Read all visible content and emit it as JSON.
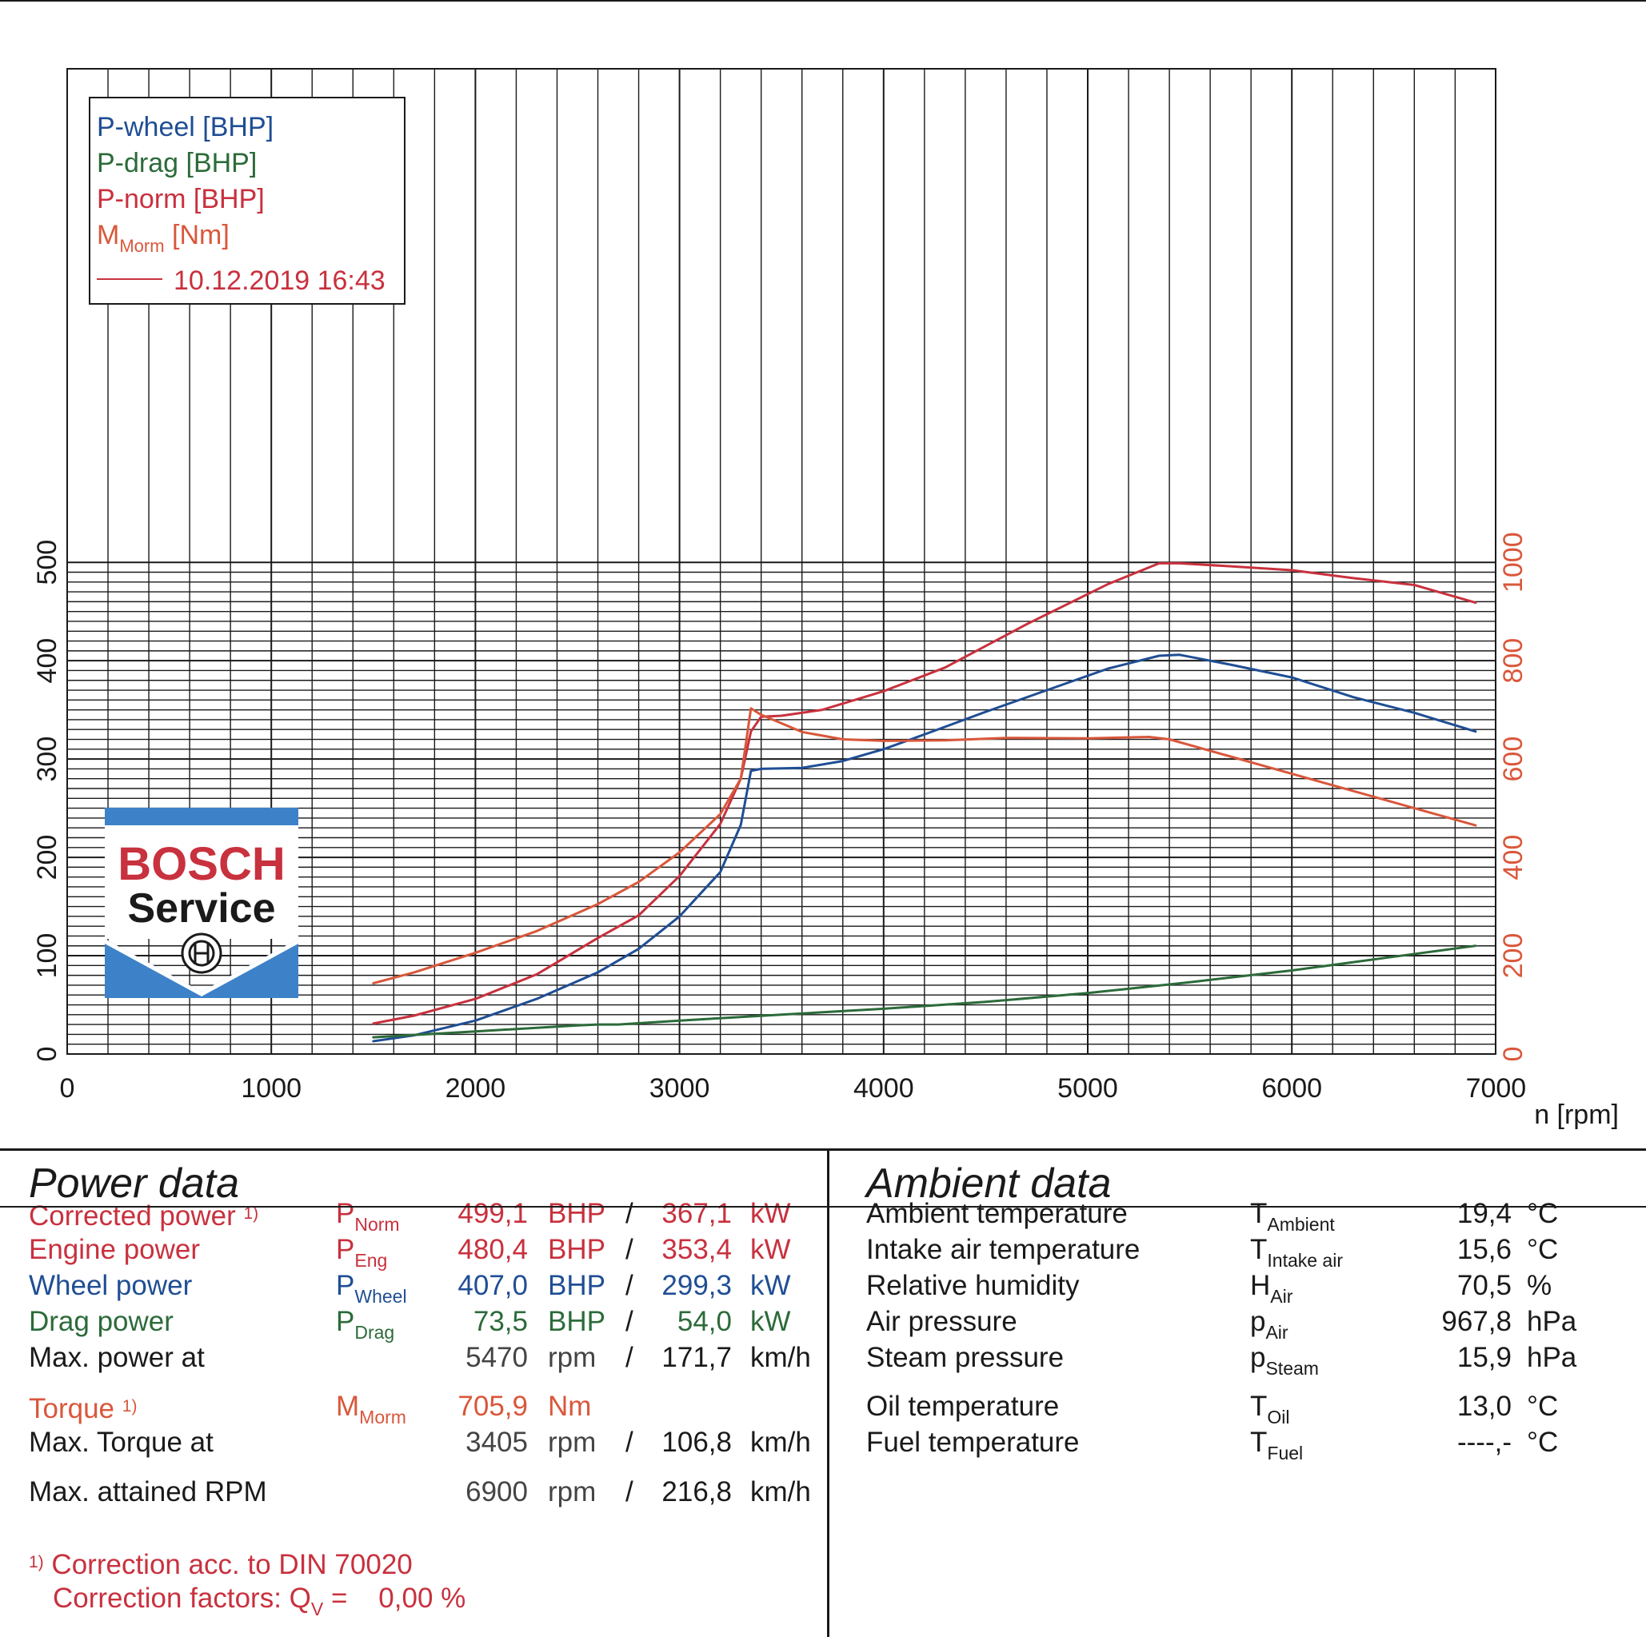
{
  "chart_data": {
    "type": "line",
    "xlabel": "n [rpm]",
    "x_ticks": [
      "0",
      "1000",
      "2000",
      "3000",
      "4000",
      "5000",
      "6000",
      "7000"
    ],
    "xlim": [
      0,
      7000
    ],
    "y_left_ticks": [
      "0",
      "100",
      "200",
      "300",
      "400",
      "500"
    ],
    "ylim_left": [
      0,
      500
    ],
    "y_right_ticks": [
      "0",
      "200",
      "400",
      "600",
      "800",
      "1000"
    ],
    "ylim_right": [
      0,
      1000
    ],
    "grid": true,
    "legend_position": "top-left",
    "legend": [
      {
        "label": "P-wheel [BHP]",
        "color": "#1f4e94"
      },
      {
        "label": "P-drag [BHP]",
        "color": "#2c6b3a"
      },
      {
        "label": "P-norm [BHP]",
        "color": "#c8313e"
      },
      {
        "label": "M",
        "sub": "Morm",
        "suffix": " [Nm]",
        "color": "#d9573b"
      }
    ],
    "run_label": "10.12.2019 16:43",
    "series": [
      {
        "name": "P-wheel [BHP]",
        "axis": "left",
        "color": "#1f4e94",
        "x": [
          1500,
          1700,
          2000,
          2300,
          2600,
          2800,
          3000,
          3200,
          3300,
          3350,
          3400,
          3600,
          3800,
          4000,
          4200,
          4500,
          4800,
          5100,
          5350,
          5450,
          5700,
          6000,
          6300,
          6600,
          6900
        ],
        "y": [
          13,
          19,
          34,
          56,
          83,
          107,
          140,
          185,
          233,
          288,
          290,
          291,
          298,
          310,
          325,
          348,
          370,
          392,
          405,
          406,
          396,
          383,
          363,
          347,
          328
        ]
      },
      {
        "name": "P-drag [BHP]",
        "axis": "left",
        "color": "#2c6b3a",
        "x": [
          1500,
          2000,
          2500,
          2600,
          2700,
          3000,
          3500,
          4000,
          4500,
          5000,
          5500,
          6000,
          6500,
          6900
        ],
        "y": [
          17,
          23,
          29,
          30,
          30,
          34,
          40,
          46,
          53,
          62,
          73,
          85,
          99,
          110
        ]
      },
      {
        "name": "P-norm [BHP]",
        "axis": "left",
        "color": "#c8313e",
        "x": [
          1500,
          1700,
          2000,
          2300,
          2600,
          2800,
          3000,
          3200,
          3300,
          3350,
          3400,
          3500,
          3700,
          4000,
          4300,
          4700,
          5100,
          5350,
          5450,
          5700,
          6000,
          6300,
          6600,
          6900
        ],
        "y": [
          31,
          39,
          56,
          81,
          118,
          141,
          181,
          234,
          280,
          328,
          343,
          344,
          350,
          369,
          393,
          437,
          478,
          499,
          499,
          496,
          492,
          484,
          477,
          459
        ]
      },
      {
        "name": "M Morm [Nm]",
        "axis": "right",
        "color": "#d9573b",
        "x": [
          1500,
          1700,
          2000,
          2300,
          2600,
          2800,
          3000,
          3200,
          3300,
          3350,
          3400,
          3600,
          3800,
          4000,
          4300,
          4600,
          5000,
          5300,
          5400,
          5700,
          6000,
          6300,
          6600,
          6900
        ],
        "y": [
          144,
          166,
          206,
          250,
          305,
          350,
          410,
          488,
          560,
          703,
          690,
          655,
          640,
          637,
          638,
          643,
          642,
          645,
          640,
          605,
          570,
          535,
          500,
          465
        ]
      }
    ]
  },
  "logo": {
    "line1": "BOSCH",
    "line2": "Service"
  },
  "power_data": {
    "title": "Power data",
    "footnote_mark": "1)",
    "rows": [
      {
        "label": "Corrected power",
        "fn": "1)",
        "sym": "P",
        "sub": "Norm",
        "v1": "499,1",
        "u1": "BHP",
        "sep": "/",
        "v2": "367,1",
        "u2": "kW",
        "color": "red"
      },
      {
        "label": "Engine power",
        "fn": "",
        "sym": "P",
        "sub": "Eng",
        "v1": "480,4",
        "u1": "BHP",
        "sep": "/",
        "v2": "353,4",
        "u2": "kW",
        "color": "red"
      },
      {
        "label": "Wheel power",
        "fn": "",
        "sym": "P",
        "sub": "Wheel",
        "v1": "407,0",
        "u1": "BHP",
        "sep": "/",
        "v2": "299,3",
        "u2": "kW",
        "color": "blue"
      },
      {
        "label": "Drag power",
        "fn": "",
        "sym": "P",
        "sub": "Drag",
        "v1": "73,5",
        "u1": "BHP",
        "sep": "/",
        "v2": "54,0",
        "u2": "kW",
        "color": "green"
      },
      {
        "label": "Max. power at",
        "fn": "",
        "sym": "",
        "sub": "",
        "v1": "5470",
        "u1": "rpm",
        "sep": "/",
        "v2": "171,7",
        "u2": "km/h",
        "color": "dark"
      },
      {
        "label": "Torque",
        "fn": "1)",
        "sym": "M",
        "sub": "Morm",
        "v1": "705,9",
        "u1": "Nm",
        "sep": "",
        "v2": "",
        "u2": "",
        "color": "orange"
      },
      {
        "label": "Max. Torque at",
        "fn": "",
        "sym": "",
        "sub": "",
        "v1": "3405",
        "u1": "rpm",
        "sep": "/",
        "v2": "106,8",
        "u2": "km/h",
        "color": "dark"
      },
      {
        "label": "Max. attained RPM",
        "fn": "",
        "sym": "",
        "sub": "",
        "v1": "6900",
        "u1": "rpm",
        "sep": "/",
        "v2": "216,8",
        "u2": "km/h",
        "color": "dark"
      }
    ],
    "correction_line1": "Correction acc. to DIN 70020",
    "correction_line2_a": "Correction factors: Q",
    "correction_line2_sub": "V",
    "correction_line2_b": " =    0,00 %"
  },
  "ambient_data": {
    "title": "Ambient data",
    "rows": [
      {
        "label": "Ambient temperature",
        "sym": "T",
        "sub": "Ambient",
        "val": "19,4",
        "unit": "°C"
      },
      {
        "label": "Intake air temperature",
        "sym": "T",
        "sub": "Intake air",
        "val": "15,6",
        "unit": "°C"
      },
      {
        "label": "Relative humidity",
        "sym": "H",
        "sub": "Air",
        "val": "70,5",
        "unit": "%"
      },
      {
        "label": "Air pressure",
        "sym": "p",
        "sub": "Air",
        "val": "967,8",
        "unit": "hPa"
      },
      {
        "label": "Steam pressure",
        "sym": "p",
        "sub": "Steam",
        "val": "15,9",
        "unit": "hPa"
      },
      {
        "label": "Oil temperature",
        "sym": "T",
        "sub": "Oil",
        "val": "13,0",
        "unit": "°C"
      },
      {
        "label": "Fuel temperature",
        "sym": "T",
        "sub": "Fuel",
        "val": "----,-",
        "unit": "°C"
      }
    ]
  },
  "colors": {
    "red": "#c8313e",
    "orange": "#d9573b",
    "blue": "#1f4e94",
    "green": "#2c6b3a",
    "logo_blue": "#3d82c8",
    "logo_red": "#c8313e"
  }
}
